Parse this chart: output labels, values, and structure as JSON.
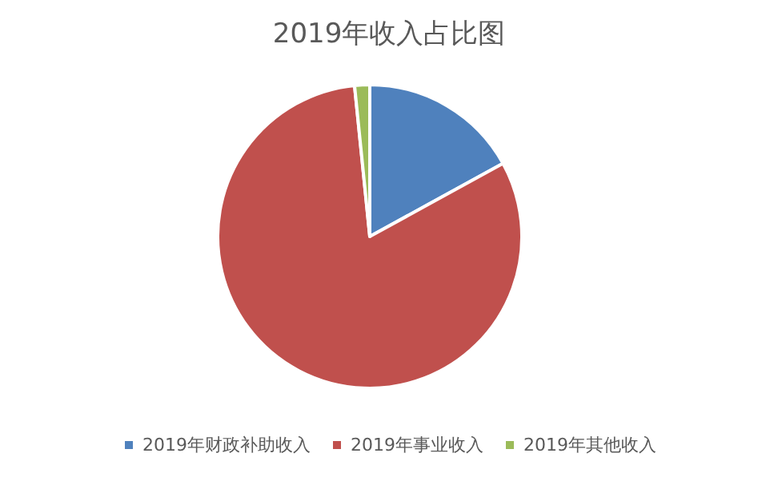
{
  "chart_data": {
    "type": "pie",
    "title": "2019年收入占比图",
    "categories": [
      "2019年财政补助收入",
      "2019年事业收入",
      "2019年其他收入"
    ],
    "values": [
      17.0,
      81.4,
      1.6
    ],
    "colors": [
      "#4f81bd",
      "#c0504d",
      "#9bbb59"
    ],
    "legend": "bottom"
  }
}
